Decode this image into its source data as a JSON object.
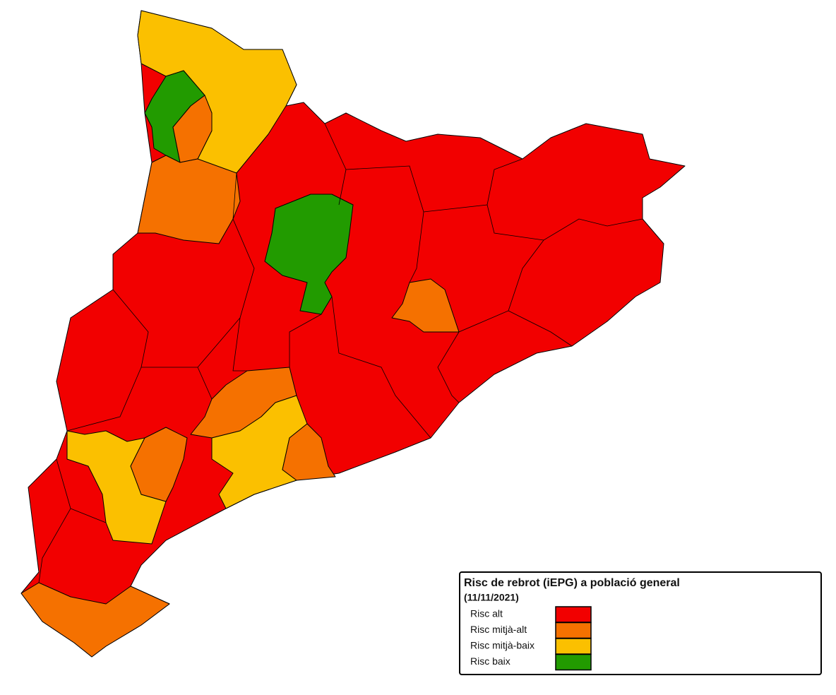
{
  "legend": {
    "title": "Risc de rebrot (iEPG) a població general",
    "date": "(11/11/2021)",
    "items": [
      {
        "label": "Risc alt",
        "color": "#f20000"
      },
      {
        "label": "Risc mitjà-alt",
        "color": "#f57100"
      },
      {
        "label": "Risc mitjà-baix",
        "color": "#fbc000"
      },
      {
        "label": "Risc baix",
        "color": "#229b00"
      }
    ]
  }
}
